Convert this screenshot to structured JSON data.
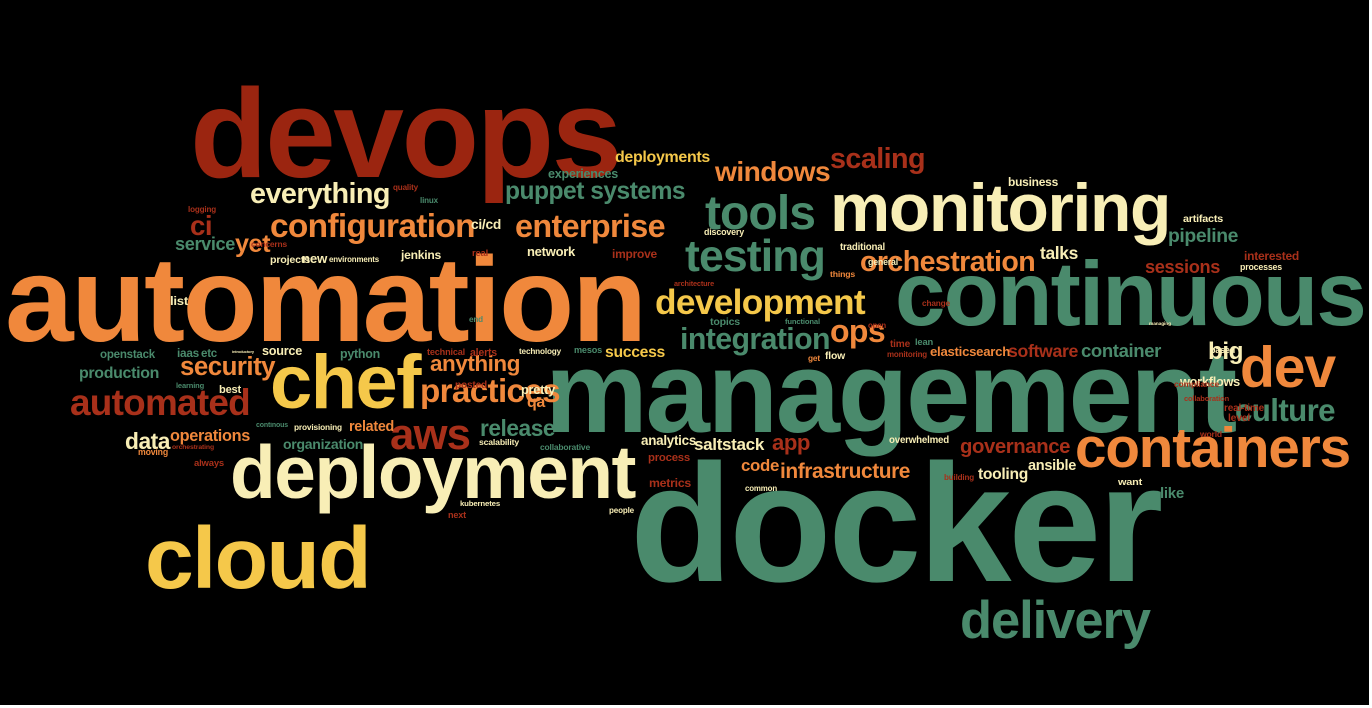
{
  "palette": {
    "background": "#000000",
    "dark_red": "#9b2510",
    "red": "#a8301a",
    "orange": "#f0883c",
    "yellow": "#f5c84a",
    "cream": "#f8eeb6",
    "green": "#4a8a6c",
    "dark_green": "#3c7a5e"
  },
  "words": [
    {
      "text": "devops",
      "color": "dark_red"
    },
    {
      "text": "automation",
      "color": "orange"
    },
    {
      "text": "continuous",
      "color": "green"
    },
    {
      "text": "management",
      "color": "green"
    },
    {
      "text": "docker",
      "color": "green"
    },
    {
      "text": "monitoring",
      "color": "cream"
    },
    {
      "text": "deployment",
      "color": "cream"
    },
    {
      "text": "cloud",
      "color": "yellow"
    },
    {
      "text": "chef",
      "color": "yellow"
    },
    {
      "text": "containers",
      "color": "orange"
    },
    {
      "text": "delivery",
      "color": "green"
    },
    {
      "text": "dev",
      "color": "orange"
    },
    {
      "text": "tools",
      "color": "green"
    },
    {
      "text": "testing",
      "color": "green"
    },
    {
      "text": "configuration",
      "color": "orange"
    },
    {
      "text": "enterprise",
      "color": "orange"
    },
    {
      "text": "development",
      "color": "yellow"
    },
    {
      "text": "automated",
      "color": "red"
    },
    {
      "text": "everything",
      "color": "cream"
    },
    {
      "text": "orchestration",
      "color": "orange"
    },
    {
      "text": "integration",
      "color": "green"
    },
    {
      "text": "practices",
      "color": "orange"
    },
    {
      "text": "windows",
      "color": "orange"
    },
    {
      "text": "scaling",
      "color": "red"
    },
    {
      "text": "culture",
      "color": "green"
    },
    {
      "text": "aws",
      "color": "red"
    },
    {
      "text": "ops",
      "color": "orange"
    },
    {
      "text": "security",
      "color": "orange"
    },
    {
      "text": "puppet systems",
      "color": "green"
    },
    {
      "text": "infrastructure",
      "color": "orange"
    },
    {
      "text": "governance",
      "color": "red"
    },
    {
      "text": "release",
      "color": "green"
    },
    {
      "text": "anything",
      "color": "orange"
    },
    {
      "text": "pipeline",
      "color": "green"
    },
    {
      "text": "sessions",
      "color": "red"
    },
    {
      "text": "app",
      "color": "red"
    },
    {
      "text": "big",
      "color": "cream"
    },
    {
      "text": "production",
      "color": "green"
    },
    {
      "text": "yet",
      "color": "orange"
    },
    {
      "text": "ci",
      "color": "red"
    },
    {
      "text": "service",
      "color": "green"
    },
    {
      "text": "data",
      "color": "cream"
    },
    {
      "text": "operations",
      "color": "orange"
    },
    {
      "text": "deployments",
      "color": "yellow"
    },
    {
      "text": "software",
      "color": "red"
    },
    {
      "text": "container",
      "color": "green"
    },
    {
      "text": "workflows",
      "color": "cream"
    },
    {
      "text": "success",
      "color": "yellow"
    },
    {
      "text": "source",
      "color": "cream"
    },
    {
      "text": "elasticsearch",
      "color": "orange"
    },
    {
      "text": "talks",
      "color": "cream"
    },
    {
      "text": "ansible",
      "color": "cream"
    },
    {
      "text": "tooling",
      "color": "cream"
    },
    {
      "text": "code",
      "color": "orange"
    },
    {
      "text": "saltstack",
      "color": "cream"
    },
    {
      "text": "analytics",
      "color": "cream"
    },
    {
      "text": "jenkins",
      "color": "cream"
    },
    {
      "text": "network",
      "color": "cream"
    },
    {
      "text": "ci/cd",
      "color": "cream"
    },
    {
      "text": "python",
      "color": "green"
    },
    {
      "text": "organization",
      "color": "green"
    },
    {
      "text": "related",
      "color": "orange"
    },
    {
      "text": "qa",
      "color": "orange"
    },
    {
      "text": "openstack",
      "color": "green"
    },
    {
      "text": "experiences",
      "color": "green"
    },
    {
      "text": "new",
      "color": "cream"
    },
    {
      "text": "improve",
      "color": "red"
    },
    {
      "text": "process",
      "color": "red"
    },
    {
      "text": "metrics",
      "color": "red"
    },
    {
      "text": "business",
      "color": "cream"
    },
    {
      "text": "interested",
      "color": "red"
    },
    {
      "text": "like",
      "color": "green"
    },
    {
      "text": "iaas",
      "color": "green"
    },
    {
      "text": "etc",
      "color": "green"
    },
    {
      "text": "best",
      "color": "cream"
    },
    {
      "text": "learning",
      "color": "green"
    },
    {
      "text": "technology",
      "color": "cream"
    },
    {
      "text": "mesos",
      "color": "green"
    },
    {
      "text": "alerts",
      "color": "red"
    },
    {
      "text": "technical",
      "color": "red"
    },
    {
      "text": "pretty",
      "color": "cream"
    },
    {
      "text": "posted",
      "color": "red"
    },
    {
      "text": "continous",
      "color": "green"
    },
    {
      "text": "provisioning",
      "color": "cream"
    },
    {
      "text": "scalability",
      "color": "cream"
    },
    {
      "text": "collaborative",
      "color": "green"
    },
    {
      "text": "kubernetes",
      "color": "cream"
    },
    {
      "text": "people",
      "color": "cream"
    },
    {
      "text": "next",
      "color": "red"
    },
    {
      "text": "moving",
      "color": "orange"
    },
    {
      "text": "orchestrating",
      "color": "red"
    },
    {
      "text": "always",
      "color": "red"
    },
    {
      "text": "environments",
      "color": "cream"
    },
    {
      "text": "projects",
      "color": "cream"
    },
    {
      "text": "concerns",
      "color": "red"
    },
    {
      "text": "logging",
      "color": "red"
    },
    {
      "text": "quality",
      "color": "red"
    },
    {
      "text": "linux",
      "color": "green"
    },
    {
      "text": "real",
      "color": "red"
    },
    {
      "text": "end",
      "color": "green"
    },
    {
      "text": "discovery",
      "color": "cream"
    },
    {
      "text": "architecture",
      "color": "red"
    },
    {
      "text": "topics",
      "color": "green"
    },
    {
      "text": "functional",
      "color": "green"
    },
    {
      "text": "open",
      "color": "red"
    },
    {
      "text": "get",
      "color": "orange"
    },
    {
      "text": "flow",
      "color": "cream"
    },
    {
      "text": "time",
      "color": "red"
    },
    {
      "text": "monitoring",
      "color": "red"
    },
    {
      "text": "change",
      "color": "red"
    },
    {
      "text": "lean",
      "color": "green"
    },
    {
      "text": "traditional",
      "color": "cream"
    },
    {
      "text": "things",
      "color": "orange"
    },
    {
      "text": "general",
      "color": "cream"
    },
    {
      "text": "compliance",
      "color": "red"
    },
    {
      "text": "collaboration",
      "color": "red"
    },
    {
      "text": "real-time",
      "color": "red"
    },
    {
      "text": "level",
      "color": "red"
    },
    {
      "text": "world",
      "color": "red"
    },
    {
      "text": "processes",
      "color": "cream"
    },
    {
      "text": "artifacts",
      "color": "cream"
    },
    {
      "text": "based",
      "color": "cream"
    },
    {
      "text": "overwhelmed",
      "color": "cream"
    },
    {
      "text": "building",
      "color": "red"
    },
    {
      "text": "common",
      "color": "cream"
    },
    {
      "text": "want",
      "color": "cream"
    },
    {
      "text": "list",
      "color": "cream"
    },
    {
      "text": "introductory",
      "color": "cream"
    },
    {
      "text": "managing",
      "color": "cream"
    }
  ]
}
